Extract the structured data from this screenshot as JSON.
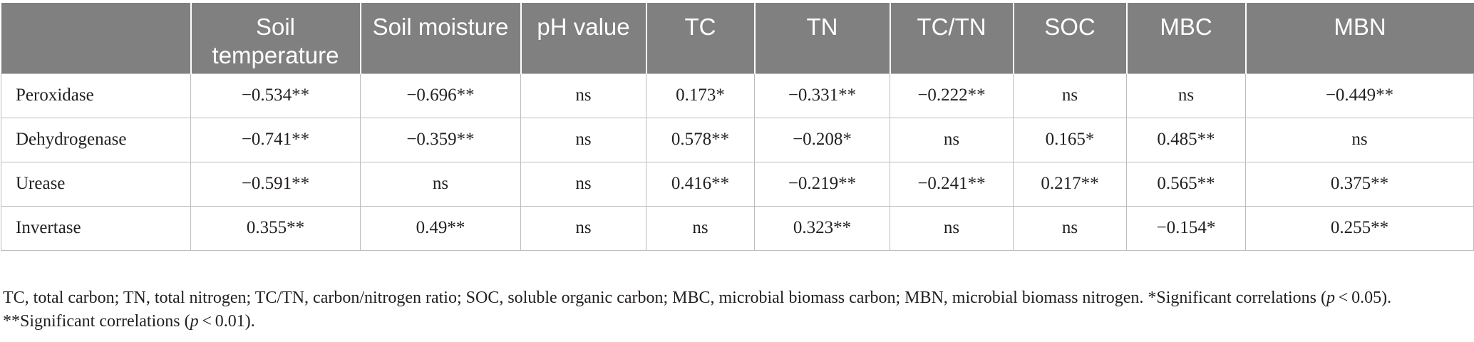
{
  "table": {
    "headers": [
      "",
      "Soil temperature",
      "Soil moisture",
      "pH value",
      "TC",
      "TN",
      "TC/TN",
      "SOC",
      "MBC",
      "MBN"
    ],
    "rows": [
      {
        "label": "Peroxidase",
        "cells": [
          "−0.534**",
          "−0.696**",
          "ns",
          "0.173*",
          "−0.331**",
          "−0.222**",
          "ns",
          "ns",
          "−0.449**"
        ]
      },
      {
        "label": "Dehydrogenase",
        "cells": [
          "−0.741**",
          "−0.359**",
          "ns",
          "0.578**",
          "−0.208*",
          "ns",
          "0.165*",
          "0.485**",
          "ns"
        ]
      },
      {
        "label": "Urease",
        "cells": [
          "−0.591**",
          "ns",
          "ns",
          "0.416**",
          "−0.219**",
          "−0.241**",
          "0.217**",
          "0.565**",
          "0.375**"
        ]
      },
      {
        "label": "Invertase",
        "cells": [
          "0.355**",
          "0.49**",
          "ns",
          "ns",
          "0.323**",
          "ns",
          "ns",
          "−0.154*",
          "0.255**"
        ]
      }
    ]
  },
  "footnote": {
    "text_before_p1": "TC, total carbon; TN, total nitrogen; TC/TN, carbon/nitrogen ratio; SOC, soluble organic carbon; MBC, microbial biomass carbon; MBN, microbial biomass nitrogen. *Significant correlations (",
    "p1": "p",
    "text_after_p1": " < 0.05). **Significant correlations (",
    "p2": "p",
    "text_after_p2": " < 0.01)."
  }
}
